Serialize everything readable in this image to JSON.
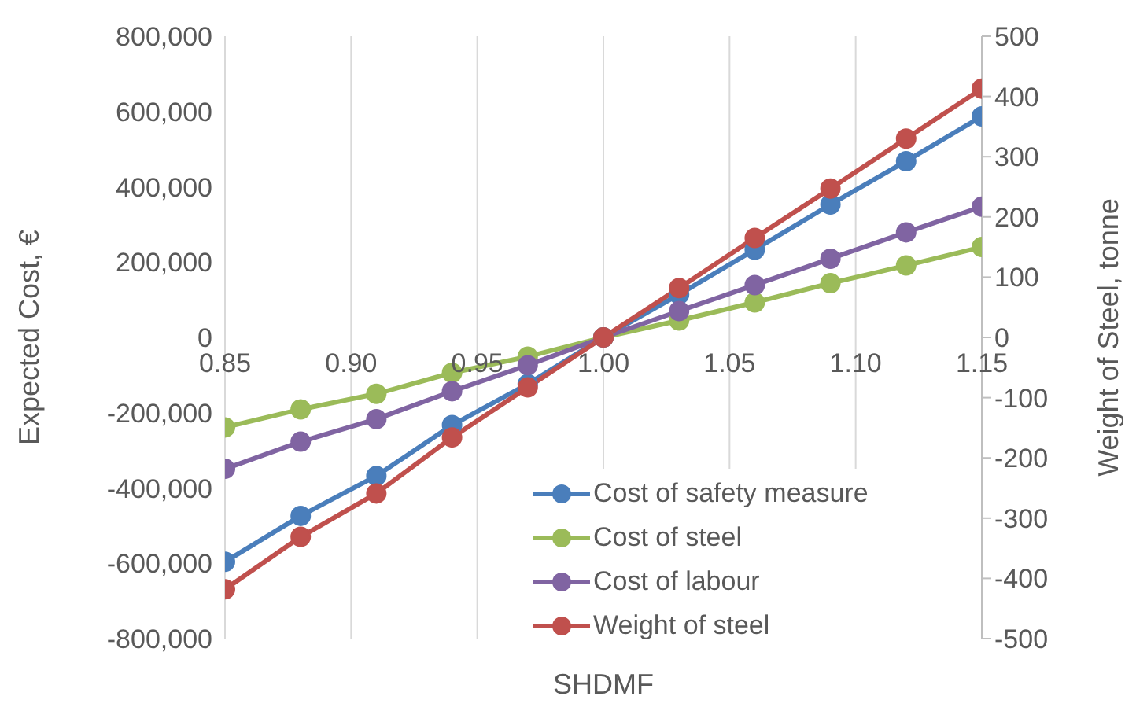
{
  "chart_data": {
    "type": "line",
    "xlabel": "SHDMF",
    "ylabel": "Expected Cost, €",
    "y2label": "Weight of Steel, tonne",
    "x": [
      0.85,
      0.88,
      0.91,
      0.94,
      0.97,
      1.0,
      1.03,
      1.06,
      1.09,
      1.12,
      1.15
    ],
    "series": [
      {
        "name": "Cost of safety measure",
        "color": "#4a7ebb",
        "values": [
          -596000,
          -474000,
          -368000,
          -233000,
          -124000,
          0,
          114000,
          233000,
          353000,
          468000,
          587000
        ]
      },
      {
        "name": "Cost of steel",
        "color": "#9bbb59",
        "values": [
          -239000,
          -191000,
          -150000,
          -94000,
          -51000,
          0,
          45000,
          93000,
          144000,
          191000,
          240000
        ]
      },
      {
        "name": "Cost of labour",
        "color": "#8064a2",
        "values": [
          -349000,
          -277000,
          -217000,
          -143000,
          -74000,
          0,
          70000,
          139000,
          209000,
          279000,
          347000
        ]
      },
      {
        "name": "Weight of steel",
        "color": "#c0504d",
        "axis": "y2",
        "values": [
          -418,
          -331,
          -259,
          -166,
          -83,
          0,
          82,
          165,
          247,
          330,
          413
        ]
      }
    ],
    "xlim": [
      0.85,
      1.15
    ],
    "xticks": [
      {
        "value": 0.85,
        "label": "0.85"
      },
      {
        "value": 0.9,
        "label": "0.90"
      },
      {
        "value": 0.95,
        "label": "0.95"
      },
      {
        "value": 1.0,
        "label": "1.00"
      },
      {
        "value": 1.05,
        "label": "1.05"
      },
      {
        "value": 1.1,
        "label": "1.10"
      },
      {
        "value": 1.15,
        "label": "1.15"
      }
    ],
    "ylim": [
      -800000,
      800000
    ],
    "yticks": [
      {
        "value": -800000,
        "label": "-800,000"
      },
      {
        "value": -600000,
        "label": "-600,000"
      },
      {
        "value": -400000,
        "label": "-400,000"
      },
      {
        "value": -200000,
        "label": "-200,000"
      },
      0,
      {
        "value": 200000,
        "label": "200,000"
      },
      {
        "value": 400000,
        "label": "400,000"
      },
      {
        "value": 600000,
        "label": "600,000"
      },
      {
        "value": 800000,
        "label": "800,000"
      }
    ],
    "y2lim": [
      -500,
      500
    ],
    "y2ticks": [
      -500,
      -400,
      -300,
      -200,
      -100,
      0,
      100,
      200,
      300,
      400,
      500
    ],
    "grid": true,
    "legend": "bottom right",
    "marker": "circle",
    "line_style": "solid"
  }
}
